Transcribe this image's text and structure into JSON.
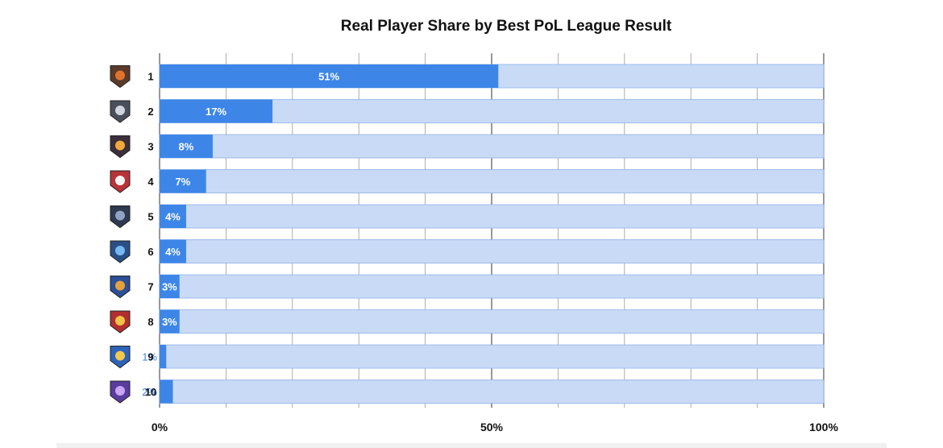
{
  "chart_data": {
    "type": "bar",
    "orientation": "horizontal",
    "stacked": "waterfall",
    "title": "Real Player Share by Best PoL League Result",
    "categories": [
      "1",
      "2",
      "3",
      "4",
      "5",
      "6",
      "7",
      "8",
      "9",
      "10"
    ],
    "values": [
      51,
      17,
      8,
      7,
      4,
      4,
      3,
      3,
      1,
      2
    ],
    "value_labels": [
      "51%",
      "17%",
      "8%",
      "7%",
      "4%",
      "4%",
      "3%",
      "3%",
      "1%",
      "2%"
    ],
    "category_icons": [
      "league-1-icon",
      "league-2-icon",
      "league-3-icon",
      "league-4-icon",
      "league-5-icon",
      "league-6-icon",
      "league-7-icon",
      "league-8-icon",
      "league-9-icon",
      "league-10-icon"
    ],
    "x_ticks": [
      "0%",
      "50%",
      "100%"
    ],
    "xlim": [
      0,
      100
    ],
    "xlabel": "",
    "ylabel": "",
    "grid": true,
    "legend": "none",
    "colors": {
      "bar": "#3d86e8",
      "track": "#c9daf6",
      "track_border": "#8eb1e6",
      "grid": "#9a9a9a",
      "label_on_bar": "#ffffff",
      "label_outside": "#3d86e8"
    }
  }
}
